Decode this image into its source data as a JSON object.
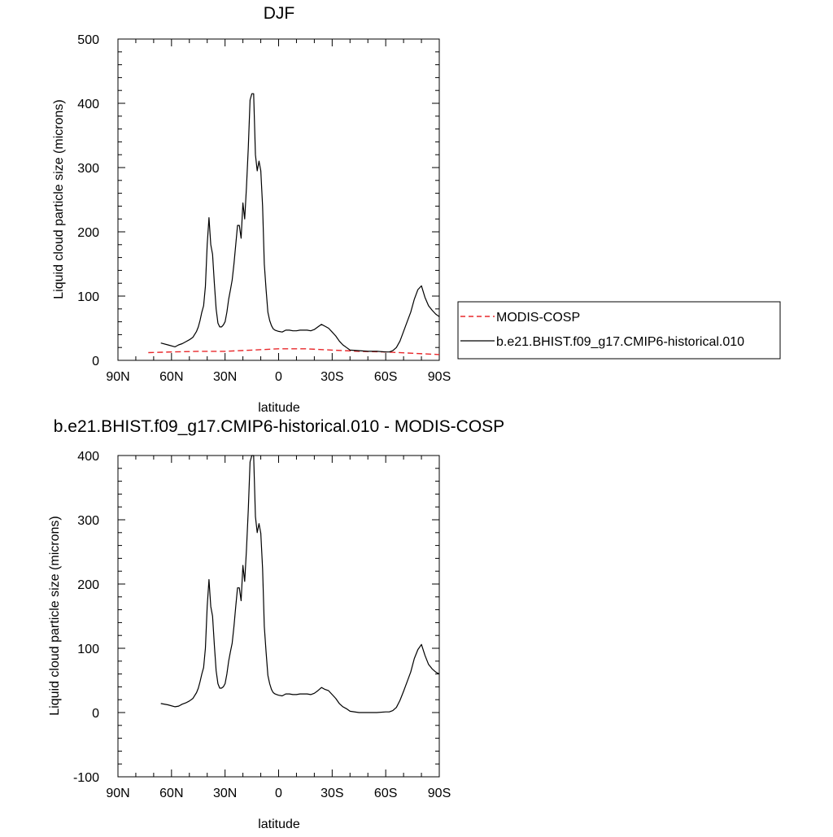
{
  "chart_data": [
    {
      "type": "line",
      "title": "DJF",
      "xlabel": "latitude",
      "ylabel": "Liquid cloud particle size (microns)",
      "xlim": [
        90,
        -90
      ],
      "ylim": [
        0,
        500
      ],
      "x_ticks": [
        {
          "value": 90,
          "label": "90N"
        },
        {
          "value": 60,
          "label": "60N"
        },
        {
          "value": 30,
          "label": "30N"
        },
        {
          "value": 0,
          "label": "0"
        },
        {
          "value": -30,
          "label": "30S"
        },
        {
          "value": -60,
          "label": "60S"
        },
        {
          "value": -90,
          "label": "90S"
        }
      ],
      "y_ticks": [
        0,
        100,
        200,
        300,
        400,
        500
      ],
      "legend": {
        "placement": "right",
        "entries": [
          "MODIS-COSP",
          "b.e21.BHIST.f09_g17.CMIP6-historical.010"
        ]
      },
      "series": [
        {
          "name": "MODIS-COSP",
          "color": "#e8282b",
          "dash": true,
          "x": [
            73,
            60,
            45,
            30,
            15,
            0,
            -15,
            -30,
            -45,
            -60,
            -75,
            -90
          ],
          "y": [
            12,
            13,
            14,
            14,
            16,
            18,
            18,
            16,
            14,
            13,
            11,
            9
          ]
        },
        {
          "name": "b.e21.BHIST.f09_g17.CMIP6-historical.010",
          "color": "#000000",
          "dash": false,
          "x": [
            66,
            62,
            58,
            56,
            54,
            52,
            50,
            48,
            46,
            45,
            44,
            43,
            42,
            41,
            40,
            39,
            38,
            37,
            36,
            35,
            34,
            33,
            32,
            31,
            30,
            29,
            28,
            27,
            26,
            25,
            24,
            23,
            22,
            21,
            20,
            19,
            18,
            17,
            16,
            15,
            14,
            13,
            12,
            11,
            10,
            9,
            8,
            7,
            6,
            5,
            4,
            3,
            2,
            1,
            0,
            -2,
            -4,
            -6,
            -8,
            -10,
            -12,
            -14,
            -16,
            -18,
            -20,
            -22,
            -24,
            -26,
            -28,
            -30,
            -32,
            -34,
            -36,
            -38,
            -40,
            -45,
            -50,
            -55,
            -60,
            -62,
            -64,
            -66,
            -68,
            -70,
            -72,
            -74,
            -76,
            -78,
            -80,
            -82,
            -84,
            -86,
            -88,
            -90
          ],
          "y": [
            27,
            24,
            21,
            24,
            26,
            29,
            32,
            36,
            45,
            52,
            62,
            75,
            85,
            115,
            180,
            222,
            180,
            165,
            120,
            80,
            58,
            52,
            52,
            55,
            60,
            75,
            95,
            110,
            125,
            150,
            180,
            210,
            210,
            190,
            245,
            220,
            270,
            330,
            405,
            415,
            415,
            320,
            295,
            310,
            295,
            240,
            150,
            110,
            75,
            62,
            54,
            49,
            47,
            46,
            45,
            44,
            47,
            47,
            46,
            46,
            47,
            47,
            47,
            46,
            48,
            52,
            56,
            53,
            50,
            44,
            38,
            30,
            24,
            20,
            16,
            15,
            14,
            14,
            13,
            13,
            15,
            20,
            30,
            45,
            60,
            75,
            95,
            110,
            116,
            98,
            85,
            78,
            72,
            68
          ]
        }
      ]
    },
    {
      "type": "line",
      "title": "b.e21.BHIST.f09_g17.CMIP6-historical.010 - MODIS-COSP",
      "xlabel": "latitude",
      "ylabel": "Liquid cloud particle size (microns)",
      "xlim": [
        90,
        -90
      ],
      "ylim": [
        -100,
        400
      ],
      "x_ticks": [
        {
          "value": 90,
          "label": "90N"
        },
        {
          "value": 60,
          "label": "60N"
        },
        {
          "value": 30,
          "label": "30N"
        },
        {
          "value": 0,
          "label": "0"
        },
        {
          "value": -30,
          "label": "30S"
        },
        {
          "value": -60,
          "label": "60S"
        },
        {
          "value": -90,
          "label": "90S"
        }
      ],
      "y_ticks": [
        -100,
        0,
        100,
        200,
        300,
        400
      ],
      "series": [
        {
          "color": "#000000",
          "dash": false,
          "x": [
            66,
            62,
            58,
            56,
            54,
            52,
            50,
            48,
            46,
            45,
            44,
            43,
            42,
            41,
            40,
            39,
            38,
            37,
            36,
            35,
            34,
            33,
            32,
            31,
            30,
            29,
            28,
            27,
            26,
            25,
            24,
            23,
            22,
            21,
            20,
            19,
            18,
            17,
            16,
            15,
            14,
            13,
            12,
            11,
            10,
            9,
            8,
            7,
            6,
            5,
            4,
            3,
            2,
            1,
            0,
            -2,
            -4,
            -6,
            -8,
            -10,
            -12,
            -14,
            -16,
            -18,
            -20,
            -22,
            -24,
            -26,
            -28,
            -30,
            -32,
            -34,
            -36,
            -38,
            -40,
            -45,
            -50,
            -55,
            -60,
            -62,
            -64,
            -66,
            -68,
            -70,
            -72,
            -74,
            -76,
            -78,
            -80,
            -82,
            -84,
            -86,
            -88,
            -90
          ],
          "y": [
            14,
            12,
            9,
            10,
            13,
            15,
            18,
            22,
            31,
            38,
            48,
            60,
            70,
            100,
            165,
            207,
            165,
            150,
            105,
            65,
            45,
            38,
            38,
            40,
            45,
            60,
            80,
            95,
            108,
            134,
            165,
            194,
            194,
            174,
            229,
            204,
            254,
            315,
            390,
            400,
            400,
            305,
            280,
            294,
            279,
            224,
            134,
            94,
            58,
            45,
            36,
            31,
            29,
            28,
            27,
            26,
            29,
            29,
            28,
            28,
            29,
            29,
            29,
            28,
            30,
            34,
            39,
            36,
            34,
            28,
            22,
            14,
            9,
            6,
            2,
            0,
            0,
            0,
            1,
            1,
            3,
            8,
            19,
            33,
            48,
            63,
            84,
            98,
            106,
            89,
            75,
            68,
            63,
            60
          ]
        }
      ]
    }
  ]
}
